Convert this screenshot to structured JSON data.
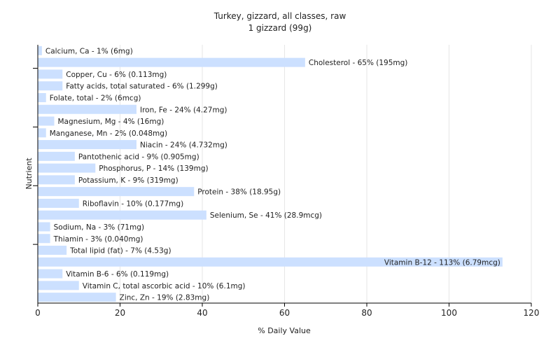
{
  "chart_data": {
    "type": "bar",
    "orientation": "horizontal",
    "title": "Turkey, gizzard, all classes, raw",
    "subtitle": "1 gizzard (99g)",
    "xlabel": "% Daily Value",
    "ylabel": "Nutrient",
    "xlim": [
      0,
      120
    ],
    "xticks": [
      0,
      20,
      40,
      60,
      80,
      100,
      120
    ],
    "bar_color": "#cce0ff",
    "grid": true,
    "categories": [
      "Calcium, Ca",
      "Cholesterol",
      "Copper, Cu",
      "Fatty acids, total saturated",
      "Folate, total",
      "Iron, Fe",
      "Magnesium, Mg",
      "Manganese, Mn",
      "Niacin",
      "Pantothenic acid",
      "Phosphorus, P",
      "Potassium, K",
      "Protein",
      "Riboflavin",
      "Selenium, Se",
      "Sodium, Na",
      "Thiamin",
      "Total lipid (fat)",
      "Vitamin B-12",
      "Vitamin B-6",
      "Vitamin C, total ascorbic acid",
      "Zinc, Zn"
    ],
    "values": [
      1,
      65,
      6,
      6,
      2,
      24,
      4,
      2,
      24,
      9,
      14,
      9,
      38,
      10,
      41,
      3,
      3,
      7,
      113,
      6,
      10,
      19
    ],
    "labels": [
      "Calcium, Ca - 1% (6mg)",
      "Cholesterol - 65% (195mg)",
      "Copper, Cu - 6% (0.113mg)",
      "Fatty acids, total saturated - 6% (1.299g)",
      "Folate, total - 2% (6mcg)",
      "Iron, Fe - 24% (4.27mg)",
      "Magnesium, Mg - 4% (16mg)",
      "Manganese, Mn - 2% (0.048mg)",
      "Niacin - 24% (4.732mg)",
      "Pantothenic acid - 9% (0.905mg)",
      "Phosphorus, P - 14% (139mg)",
      "Potassium, K - 9% (319mg)",
      "Protein - 38% (18.95g)",
      "Riboflavin - 10% (0.177mg)",
      "Selenium, Se - 41% (28.9mcg)",
      "Sodium, Na - 3% (71mg)",
      "Thiamin - 3% (0.040mg)",
      "Total lipid (fat) - 7% (4.53g)",
      "Vitamin B-12 - 113% (6.79mcg)",
      "Vitamin B-6 - 6% (0.119mg)",
      "Vitamin C, total ascorbic acid - 10% (6.1mg)",
      "Zinc, Zn - 19% (2.83mg)"
    ]
  }
}
